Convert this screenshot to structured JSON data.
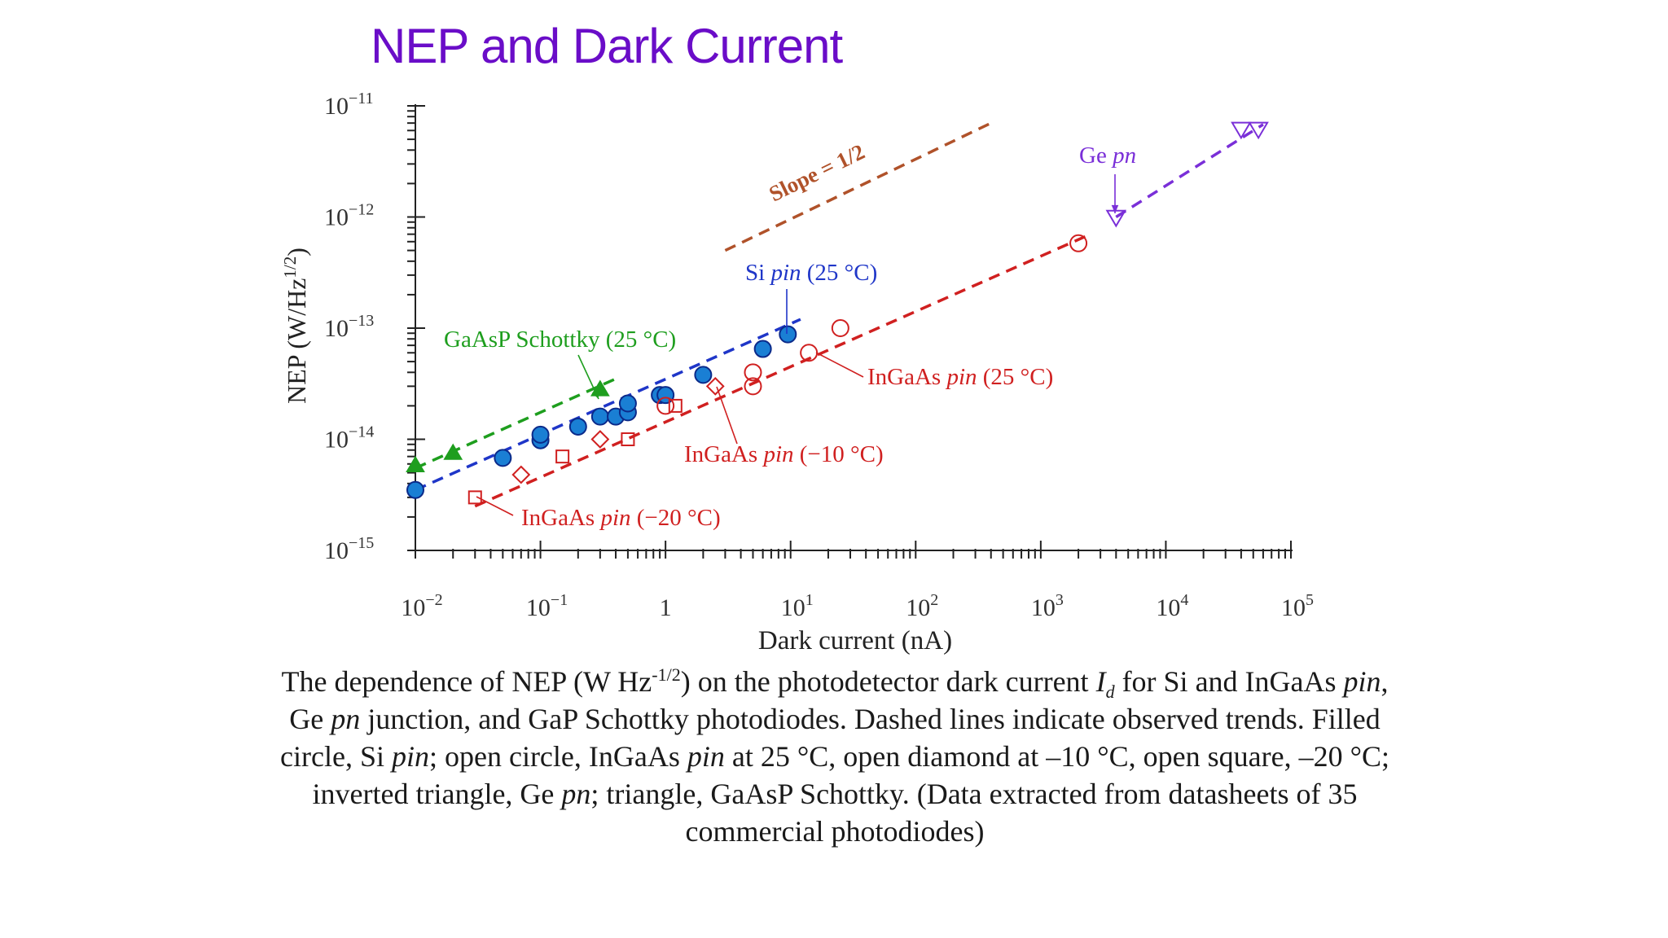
{
  "slide": {
    "title": "NEP and Dark Current"
  },
  "caption": {
    "p1": "The dependence of NEP (W Hz",
    "p1_sup": "-1/2",
    "p2": ") on the photodetector dark current ",
    "p2_var": "I",
    "p2_sub": "d",
    "p3": " for Si and InGaAs ",
    "p3_i": "pin",
    "p4": ", Ge ",
    "p4_i": "pn",
    "p5": " junction, and GaP Schottky photodiodes. Dashed lines indicate observed trends. Filled circle, Si ",
    "p5_i": "pin",
    "p6": "; open circle, InGaAs ",
    "p6_i": "pin",
    "p7": " at 25 °C, open diamond at –10 °C, open square, –20 °C; inverted triangle, Ge ",
    "p7_i": "pn",
    "p8": "; triangle, GaAsP Schottky.  (Data extracted from datasheets of 35 commercial photodiodes)"
  },
  "chart_data": {
    "type": "scatter",
    "xlabel": "Dark current (nA)",
    "ylabel": "NEP (W/Hz1/2)",
    "ylabel_sup_part": "1/2",
    "x_scale": "log",
    "y_scale": "log",
    "xlim": [
      0.01,
      100000
    ],
    "ylim": [
      1e-15,
      1e-11
    ],
    "x_ticks": [
      {
        "value": 0.01,
        "base": "10",
        "exp": "−2"
      },
      {
        "value": 0.1,
        "base": "10",
        "exp": "−1"
      },
      {
        "value": 1,
        "base": "1",
        "exp": ""
      },
      {
        "value": 10,
        "base": "10",
        "exp": "1"
      },
      {
        "value": 100,
        "base": "10",
        "exp": "2"
      },
      {
        "value": 1000,
        "base": "10",
        "exp": "3"
      },
      {
        "value": 10000,
        "base": "10",
        "exp": "4"
      },
      {
        "value": 100000,
        "base": "10",
        "exp": "5"
      }
    ],
    "y_ticks": [
      {
        "value": 1e-11,
        "base": "10",
        "exp": "−11"
      },
      {
        "value": 1e-12,
        "base": "10",
        "exp": "−12"
      },
      {
        "value": 1e-13,
        "base": "10",
        "exp": "−13"
      },
      {
        "value": 1e-14,
        "base": "10",
        "exp": "−14"
      },
      {
        "value": 1e-15,
        "base": "10",
        "exp": "−15"
      }
    ],
    "grid": false,
    "legend": "none (direct labels on plot)",
    "series": [
      {
        "name": "Si pin (25 °C)",
        "marker": "filled-circle",
        "color": "#1a7fd4",
        "edge": "#0b2a8a",
        "points": [
          [
            0.01,
            3.5e-15
          ],
          [
            0.05,
            6.8e-15
          ],
          [
            0.1,
            9.8e-15
          ],
          [
            0.1,
            1.1e-14
          ],
          [
            0.2,
            1.3e-14
          ],
          [
            0.3,
            1.6e-14
          ],
          [
            0.4,
            1.6e-14
          ],
          [
            0.5,
            1.75e-14
          ],
          [
            0.5,
            2.1e-14
          ],
          [
            0.9,
            2.5e-14
          ],
          [
            1.0,
            2.5e-14
          ],
          [
            2.0,
            3.8e-14
          ],
          [
            6.0,
            6.5e-14
          ],
          [
            9.5,
            8.8e-14
          ]
        ]
      },
      {
        "name": "InGaAs pin (25 °C)",
        "marker": "open-circle",
        "color": "#d02020",
        "points": [
          [
            1.0,
            2e-14
          ],
          [
            5.0,
            3e-14
          ],
          [
            5.0,
            4e-14
          ],
          [
            14.0,
            6e-14
          ],
          [
            25.0,
            1e-13
          ],
          [
            2000.0,
            5.8e-13
          ]
        ]
      },
      {
        "name": "InGaAs pin (−10 °C)",
        "marker": "open-diamond",
        "color": "#d02020",
        "points": [
          [
            0.07,
            4.8e-15
          ],
          [
            0.3,
            1e-14
          ],
          [
            2.5,
            3e-14
          ]
        ]
      },
      {
        "name": "InGaAs pin (−20 °C)",
        "marker": "open-square",
        "color": "#d02020",
        "points": [
          [
            0.03,
            3e-15
          ],
          [
            0.15,
            7e-15
          ],
          [
            0.5,
            1e-14
          ],
          [
            1.2,
            2e-14
          ]
        ]
      },
      {
        "name": "Ge pn",
        "marker": "open-inverted-triangle",
        "color": "#7a2fd8",
        "points": [
          [
            4000.0,
            1e-12
          ],
          [
            40000.0,
            6.2e-12
          ],
          [
            55000.0,
            6.2e-12
          ]
        ]
      },
      {
        "name": "GaAsP Schottky (25 °C)",
        "marker": "filled-triangle",
        "color": "#1e9e1e",
        "points": [
          [
            0.01,
            5.8e-15
          ],
          [
            0.02,
            7.5e-15
          ],
          [
            0.3,
            2.8e-14
          ]
        ]
      }
    ],
    "trend_lines": [
      {
        "color": "#b0522a",
        "from": [
          3,
          5e-13
        ],
        "to": [
          400,
          7e-12
        ]
      },
      {
        "color": "#1f36c8",
        "from": [
          0.01,
          3.5e-15
        ],
        "to": [
          12,
          1.2e-13
        ]
      },
      {
        "color": "#d02020",
        "from": [
          0.03,
          2.5e-15
        ],
        "to": [
          2500,
          7e-13
        ]
      },
      {
        "color": "#1e9e1e",
        "from": [
          0.01,
          5.5e-15
        ],
        "to": [
          0.4,
          3.5e-14
        ]
      },
      {
        "color": "#7a2fd8",
        "from": [
          4000,
          1e-12
        ],
        "to": [
          60000,
          6.8e-12
        ]
      }
    ],
    "annotations": [
      {
        "text": "Slope = 1/2",
        "color": "#b0522a",
        "at": [
          10,
          1.6e-12
        ]
      },
      {
        "text_main": "Ge ",
        "text_italic": "pn",
        "color": "#7a2fd8",
        "at": [
          6000,
          2.5e-12
        ]
      },
      {
        "text_main": "Si ",
        "text_italic": "pin",
        "text_tail": " (25 °C)",
        "color": "#1f36c8",
        "at": [
          6,
          1.8e-13
        ]
      },
      {
        "text_main": "GaAsP Schottky (25 °C)",
        "color": "#1e9e1e",
        "at": [
          0.02,
          9e-14
        ]
      },
      {
        "text_main": "InGaAs ",
        "text_italic": "pin",
        "text_tail": " (25 °C)",
        "color": "#d02020",
        "at": [
          40,
          5e-14
        ]
      },
      {
        "text_main": "InGaAs ",
        "text_italic": "pin",
        "text_tail": " (−10 °C)",
        "color": "#d02020",
        "at": [
          1.2,
          1e-14
        ]
      },
      {
        "text_main": "InGaAs ",
        "text_italic": "pin",
        "text_tail": " (−20 °C)",
        "color": "#d02020",
        "at": [
          0.05,
          2.6e-15
        ]
      }
    ]
  }
}
